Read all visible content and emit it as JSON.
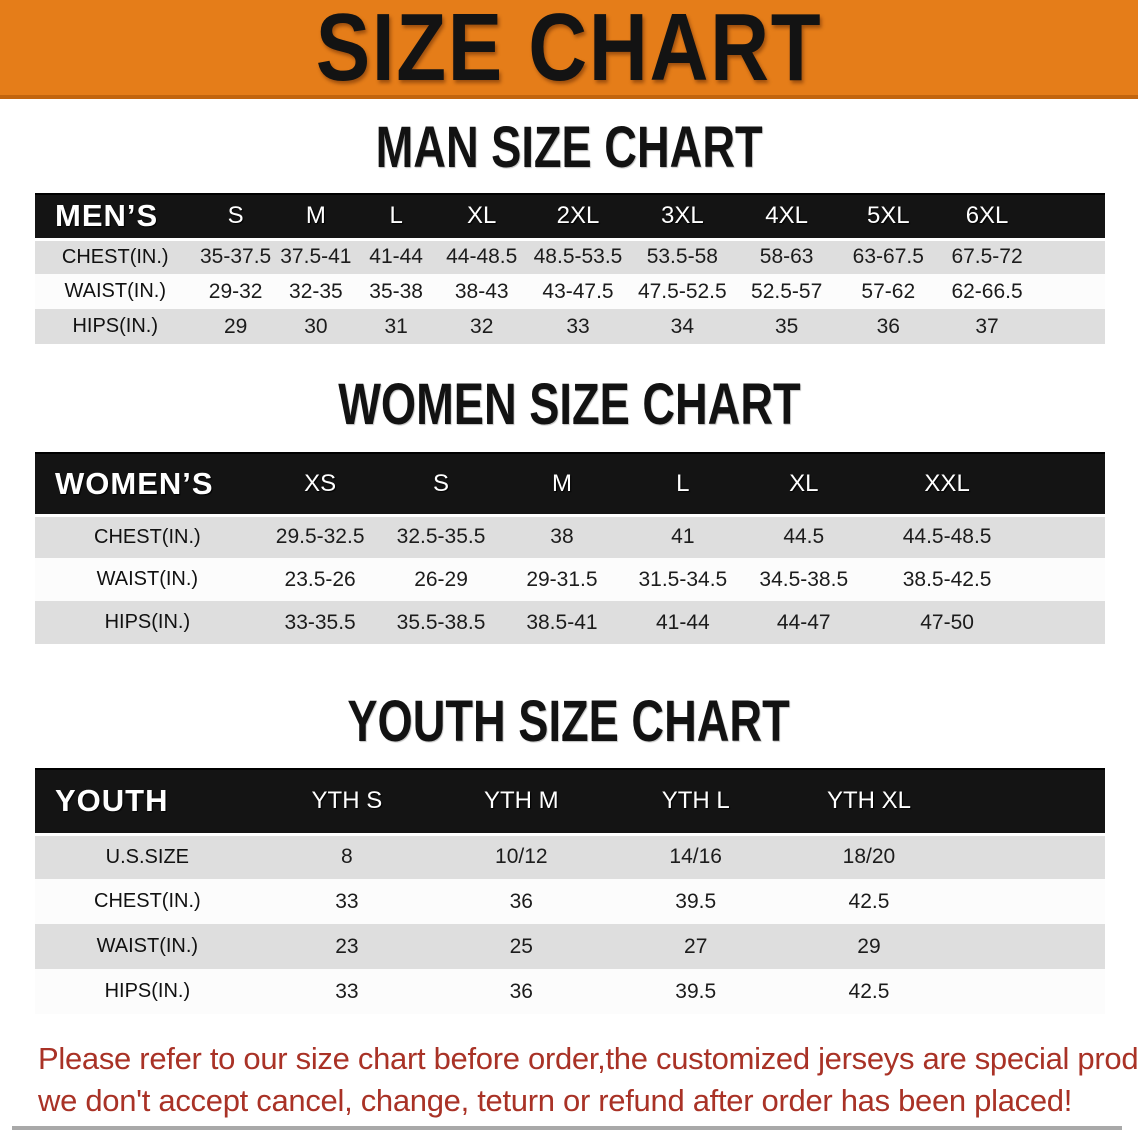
{
  "banner": {
    "title": "SIZE CHART"
  },
  "colors": {
    "banner_orange": "#E57D19",
    "table_header_black": "#141414",
    "row_gray": "#DEDEDE",
    "row_white": "#FCFCFC",
    "disclaimer_red": "#A93226"
  },
  "sections": [
    {
      "id": "men",
      "heading": "MAN SIZE CHART",
      "table": {
        "header_label": "MEN’S",
        "columns": [
          "S",
          "M",
          "L",
          "XL",
          "2XL",
          "3XL",
          "4XL",
          "5XL",
          "6XL"
        ],
        "rows": [
          {
            "label": "CHEST(IN.)",
            "values": [
              "35-37.5",
              "37.5-41",
              "41-44",
              "44-48.5",
              "48.5-53.5",
              "53.5-58",
              "58-63",
              "63-67.5",
              "67.5-72"
            ]
          },
          {
            "label": "WAIST(IN.)",
            "values": [
              "29-32",
              "32-35",
              "35-38",
              "38-43",
              "43-47.5",
              "47.5-52.5",
              "52.5-57",
              "57-62",
              "62-66.5"
            ]
          },
          {
            "label": "HIPS(IN.)",
            "values": [
              "29",
              "30",
              "31",
              "32",
              "33",
              "34",
              "35",
              "36",
              "37"
            ]
          }
        ]
      }
    },
    {
      "id": "women",
      "heading": "WOMEN SIZE CHART",
      "table": {
        "header_label": "WOMEN’S",
        "columns": [
          "XS",
          "S",
          "M",
          "L",
          "XL",
          "XXL"
        ],
        "rows": [
          {
            "label": "CHEST(IN.)",
            "values": [
              "29.5-32.5",
              "32.5-35.5",
              "38",
              "41",
              "44.5",
              "44.5-48.5"
            ]
          },
          {
            "label": "WAIST(IN.)",
            "values": [
              "23.5-26",
              "26-29",
              "29-31.5",
              "31.5-34.5",
              "34.5-38.5",
              "38.5-42.5"
            ]
          },
          {
            "label": "HIPS(IN.)",
            "values": [
              "33-35.5",
              "35.5-38.5",
              "38.5-41",
              "41-44",
              "44-47",
              "47-50"
            ]
          }
        ]
      }
    },
    {
      "id": "youth",
      "heading": "YOUTH SIZE CHART",
      "table": {
        "header_label": "YOUTH",
        "columns": [
          "YTH S",
          "YTH M",
          "YTH L",
          "YTH XL"
        ],
        "rows": [
          {
            "label": "U.S.SIZE",
            "values": [
              "8",
              "10/12",
              "14/16",
              "18/20"
            ]
          },
          {
            "label": "CHEST(IN.)",
            "values": [
              "33",
              "36",
              "39.5",
              "42.5"
            ]
          },
          {
            "label": "WAIST(IN.)",
            "values": [
              "23",
              "25",
              "27",
              "29"
            ]
          },
          {
            "label": "HIPS(IN.)",
            "values": [
              "33",
              "36",
              "39.5",
              "42.5"
            ]
          }
        ]
      }
    }
  ],
  "disclaimer": {
    "line1": "Please refer to our size chart before order,the customized jerseys are special products,",
    "line2": "we don't accept cancel, change, teturn or refund after order has been placed!"
  }
}
